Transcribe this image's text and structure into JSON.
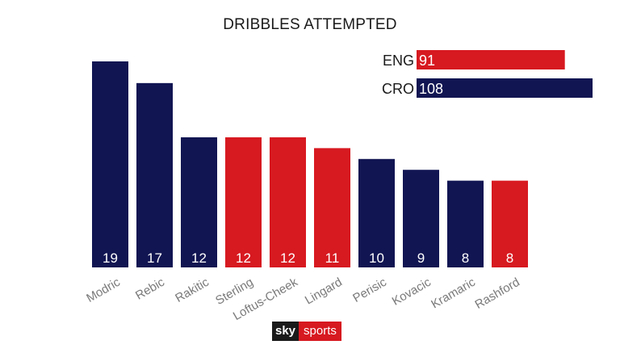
{
  "colors": {
    "ENG": "#d71920",
    "CRO": "#111552"
  },
  "logo": {
    "sky": "sky",
    "sports": "sports"
  },
  "chart_data": {
    "type": "bar",
    "title": "DRIBBLES ATTEMPTED",
    "categories": [
      "Modric",
      "Rebic",
      "Rakitic",
      "Sterling",
      "Loftus-Cheek",
      "Lingard",
      "Perisic",
      "Kovacic",
      "Kramaric",
      "Rashford"
    ],
    "values": [
      19,
      17,
      12,
      12,
      12,
      11,
      10,
      9,
      8,
      8
    ],
    "teams": [
      "CRO",
      "CRO",
      "CRO",
      "ENG",
      "ENG",
      "ENG",
      "CRO",
      "CRO",
      "CRO",
      "ENG"
    ],
    "ylim": [
      0,
      19
    ],
    "grid": false,
    "team_totals": [
      {
        "team": "ENG",
        "value": 91
      },
      {
        "team": "CRO",
        "value": 108
      }
    ]
  }
}
